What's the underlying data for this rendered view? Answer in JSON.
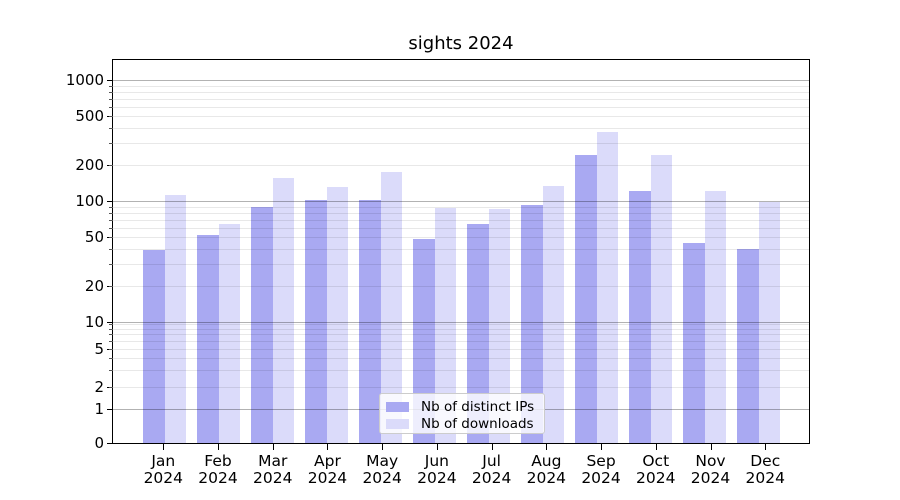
{
  "title": "sights 2024",
  "colors": {
    "distinct_ips_bar": "#a9a9f2",
    "downloads_bar": "#dbdbfa",
    "axis": "#000000",
    "major_grid": "#b5b5b5",
    "minor_grid": "#e9e9e9"
  },
  "legend": {
    "items": [
      {
        "label": "Nb of distinct IPs",
        "color": "#a9a9f2"
      },
      {
        "label": "Nb of downloads",
        "color": "#dbdbfa"
      }
    ]
  },
  "chart_data": {
    "type": "bar",
    "title": "sights 2024",
    "categories": [
      "Jan 2024",
      "Feb 2024",
      "Mar 2024",
      "Apr 2024",
      "May 2024",
      "Jun 2024",
      "Jul 2024",
      "Aug 2024",
      "Sep 2024",
      "Oct 2024",
      "Nov 2024",
      "Dec 2024"
    ],
    "month_labels": [
      "Jan",
      "Feb",
      "Mar",
      "Apr",
      "May",
      "Jun",
      "Jul",
      "Aug",
      "Sep",
      "Oct",
      "Nov",
      "Dec"
    ],
    "year_label": "2024",
    "series": [
      {
        "name": "Nb of distinct IPs",
        "color": "#a9a9f2",
        "values": [
          39,
          52,
          89,
          101,
          101,
          49,
          64,
          93,
          240,
          120,
          45,
          40
        ]
      },
      {
        "name": "Nb of downloads",
        "color": "#dbdbfa",
        "values": [
          112,
          64,
          155,
          130,
          175,
          87,
          86,
          133,
          370,
          240,
          122,
          98
        ]
      }
    ],
    "yscale": "symlog",
    "y_tick_labels": [
      "0",
      "1",
      "2",
      "5",
      "10",
      "20",
      "50",
      "100",
      "200",
      "500",
      "1000"
    ],
    "y_tick_values": [
      0,
      1,
      2,
      5,
      10,
      20,
      50,
      100,
      200,
      500,
      1000
    ],
    "ylim": [
      0,
      1400
    ],
    "xlabel": "",
    "ylabel": "",
    "grid": true,
    "legend_position": "lower center"
  }
}
